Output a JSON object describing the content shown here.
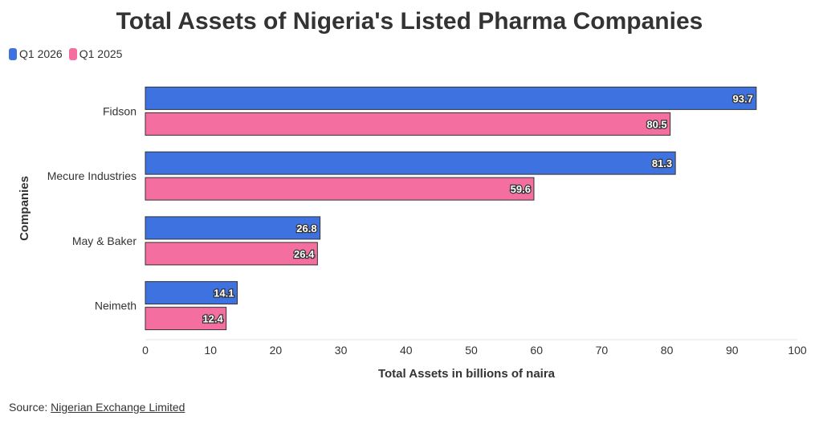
{
  "title": "Total Assets of Nigeria's Listed Pharma Companies",
  "source": {
    "label": "Source:",
    "link_text": "Nigerian Exchange Limited"
  },
  "colors": {
    "q1_2026": "#3d72e0",
    "q1_2025": "#f46ea0",
    "grid": "#e6e6e6",
    "bar_stroke": "#333333"
  },
  "chart_data": {
    "type": "bar",
    "orientation": "horizontal",
    "categories": [
      "Fidson",
      "Mecure Industries",
      "May & Baker",
      "Neimeth"
    ],
    "series": [
      {
        "name": "Q1 2026",
        "values": [
          93.7,
          81.3,
          26.8,
          14.1
        ]
      },
      {
        "name": "Q1 2025",
        "values": [
          80.5,
          59.6,
          26.4,
          12.4
        ]
      }
    ],
    "xlabel": "Total Assets in billions of naira",
    "ylabel": "Companies",
    "xlim": [
      0,
      100
    ],
    "xticks": [
      0,
      10,
      20,
      30,
      40,
      50,
      60,
      70,
      80,
      90,
      100
    ],
    "legend_position": "top-left",
    "grid": false
  }
}
